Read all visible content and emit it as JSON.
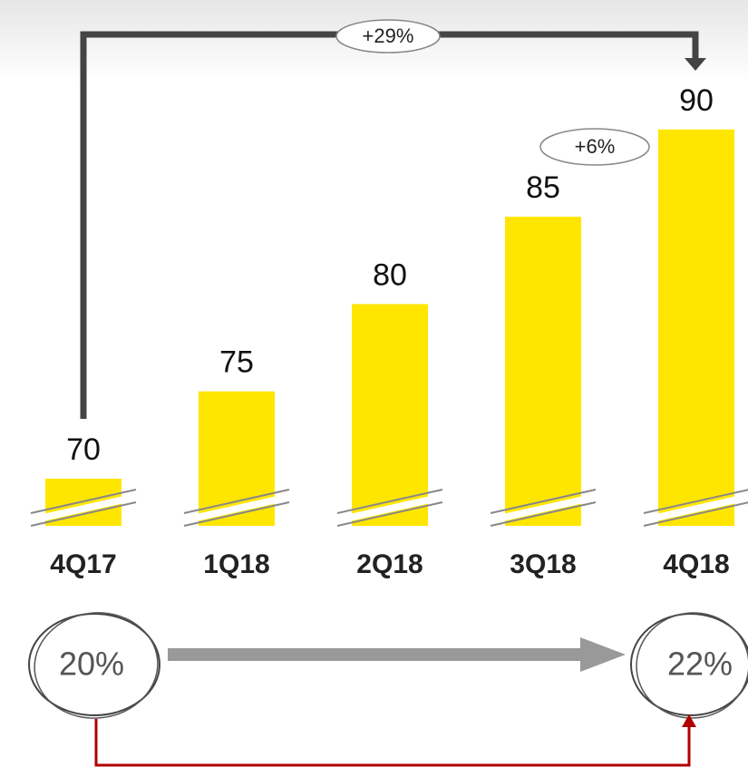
{
  "chart_data": {
    "type": "bar",
    "categories": [
      "4Q17",
      "1Q18",
      "2Q18",
      "3Q18",
      "4Q18"
    ],
    "values": [
      70,
      75,
      80,
      85,
      90
    ],
    "color": "#ffe600",
    "ylim": [
      67.3,
      93
    ],
    "annotations": {
      "total_change": "+29%",
      "last_change": "+6%",
      "start_share": "20%",
      "end_share": "22%"
    }
  }
}
